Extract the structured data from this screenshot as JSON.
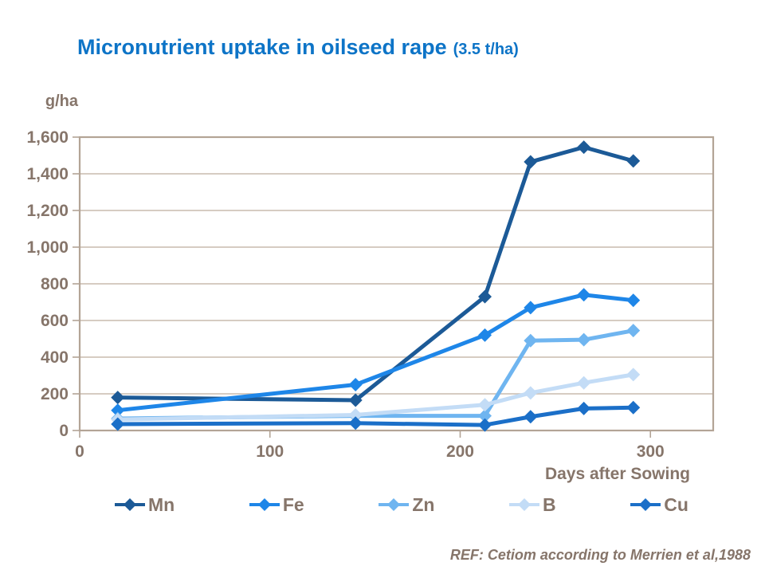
{
  "title": {
    "text": "Micronutrient uptake in oilseed rape",
    "subtitle": "(3.5 t/ha)"
  },
  "ref_note": "REF: Cetiom according to Merrien et al,1988",
  "colors": {
    "title": "#0D74C7",
    "axis_text": "#86756A",
    "gridline": "#C9BCAE",
    "plot_border": "#B3A496"
  },
  "chart_data": {
    "type": "line",
    "title": "Micronutrient uptake in oilseed rape (3.5 t/ha)",
    "xlabel": "Days after Sowing",
    "ylabel": "g/ha",
    "xlim": [
      0,
      333
    ],
    "ylim": [
      0,
      1600
    ],
    "grid": "horizontal",
    "legend_position": "bottom",
    "marker": "diamond",
    "x": [
      20,
      145,
      213,
      237,
      265,
      291
    ],
    "series": [
      {
        "name": "Mn",
        "color": "#1C5A97",
        "values": [
          180,
          165,
          730,
          1465,
          1545,
          1470
        ]
      },
      {
        "name": "Fe",
        "color": "#1E86E8",
        "values": [
          110,
          250,
          520,
          670,
          740,
          710
        ]
      },
      {
        "name": "Zn",
        "color": "#6FB5F0",
        "values": [
          65,
          80,
          80,
          490,
          495,
          545
        ]
      },
      {
        "name": "B",
        "color": "#C3DCF6",
        "values": [
          60,
          85,
          140,
          205,
          260,
          305
        ]
      },
      {
        "name": "Cu",
        "color": "#1B6FC8",
        "values": [
          35,
          40,
          30,
          75,
          120,
          125
        ]
      }
    ],
    "x_ticks": {
      "values": [
        0,
        100,
        200,
        300
      ],
      "labels": [
        "0",
        "100",
        "200",
        "300"
      ]
    },
    "y_ticks": {
      "values": [
        0,
        200,
        400,
        600,
        800,
        1000,
        1200,
        1400,
        1600
      ],
      "labels": [
        "0",
        "200",
        "400",
        "600",
        "800",
        "1,000",
        "1,200",
        "1,400",
        "1,600"
      ]
    }
  }
}
